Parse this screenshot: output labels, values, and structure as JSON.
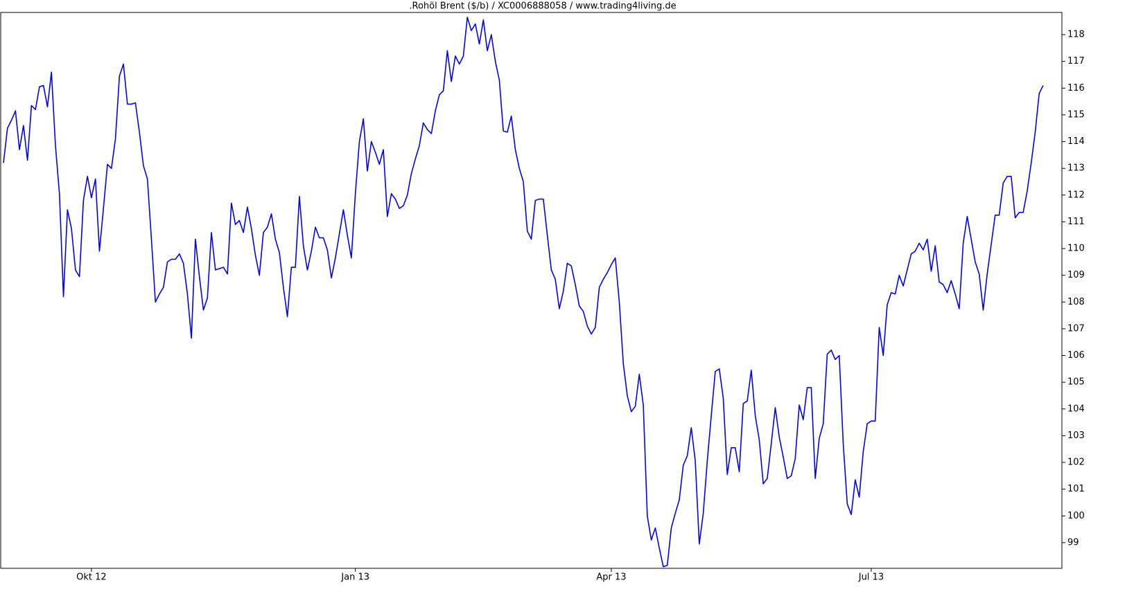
{
  "chart_data": {
    "type": "line",
    "title": ".Rohöl Brent ($/b) / XC0006888058 / www.trading4living.de",
    "categories": [
      null,
      null,
      null,
      null,
      null,
      null,
      null,
      null,
      null,
      null,
      null,
      null,
      null,
      null,
      null,
      null,
      null,
      null,
      null,
      null,
      null,
      null,
      "Okt 12",
      null,
      null,
      null,
      null,
      null,
      null,
      null,
      null,
      null,
      null,
      null,
      null,
      null,
      null,
      null,
      null,
      null,
      null,
      null,
      null,
      null,
      null,
      null,
      null,
      null,
      null,
      null,
      null,
      null,
      null,
      null,
      null,
      null,
      null,
      null,
      null,
      null,
      null,
      null,
      null,
      null,
      null,
      null,
      null,
      null,
      null,
      null,
      null,
      null,
      null,
      null,
      null,
      null,
      null,
      null,
      null,
      null,
      null,
      null,
      null,
      null,
      null,
      null,
      null,
      null,
      "Jan 13",
      null,
      null,
      null,
      null,
      null,
      null,
      null,
      null,
      null,
      null,
      null,
      null,
      null,
      null,
      null,
      null,
      null,
      null,
      null,
      null,
      null,
      null,
      null,
      null,
      null,
      null,
      null,
      null,
      null,
      null,
      null,
      null,
      null,
      null,
      null,
      null,
      null,
      null,
      null,
      null,
      null,
      null,
      null,
      null,
      null,
      null,
      null,
      null,
      null,
      null,
      null,
      null,
      null,
      null,
      null,
      null,
      null,
      null,
      null,
      null,
      null,
      null,
      null,
      "Apr 13",
      null,
      null,
      null,
      null,
      null,
      null,
      null,
      null,
      null,
      null,
      null,
      null,
      null,
      null,
      null,
      null,
      null,
      null,
      null,
      null,
      null,
      null,
      null,
      null,
      null,
      null,
      null,
      null,
      null,
      null,
      null,
      null,
      null,
      null,
      null,
      null,
      null,
      null,
      null,
      null,
      null,
      null,
      null,
      null,
      null,
      null,
      null,
      null,
      null,
      null,
      null,
      null,
      null,
      null,
      null,
      null,
      null,
      null,
      null,
      null,
      null,
      null,
      null,
      null,
      "Jul 13",
      null,
      null,
      null,
      null,
      null,
      null,
      null,
      null,
      null,
      null,
      null,
      null,
      null,
      null,
      null,
      null,
      null,
      null,
      null,
      null,
      null,
      null,
      null,
      null,
      null,
      null,
      null,
      null,
      null,
      null,
      null,
      null,
      null,
      null,
      null,
      null,
      null,
      null,
      null,
      null,
      null,
      null,
      null
    ],
    "series": [
      {
        "color": "#0000ff",
        "values": [
          113.2,
          114.5,
          114.8,
          115.15,
          113.7,
          114.6,
          113.3,
          115.35,
          115.2,
          116.05,
          116.1,
          115.3,
          116.6,
          113.85,
          112.05,
          108.2,
          111.45,
          110.75,
          109.2,
          108.95,
          111.8,
          112.7,
          111.9,
          112.6,
          109.9,
          111.5,
          113.15,
          113.0,
          114.1,
          116.45,
          116.9,
          115.4,
          115.4,
          115.45,
          114.35,
          113.1,
          112.6,
          110.35,
          108.0,
          108.3,
          108.55,
          109.5,
          109.6,
          109.6,
          109.8,
          109.45,
          108.3,
          106.65,
          110.35,
          108.95,
          107.7,
          108.15,
          110.6,
          109.2,
          109.25,
          109.3,
          109.05,
          111.7,
          110.9,
          111.05,
          110.6,
          111.55,
          110.75,
          109.75,
          109.0,
          110.6,
          110.8,
          111.3,
          110.35,
          109.85,
          108.55,
          107.45,
          109.3,
          109.3,
          111.95,
          110.1,
          109.2,
          109.9,
          110.8,
          110.4,
          110.4,
          109.95,
          108.9,
          109.65,
          110.55,
          111.45,
          110.5,
          109.65,
          112.05,
          114.0,
          114.85,
          112.9,
          114.0,
          113.6,
          113.15,
          113.7,
          111.2,
          112.05,
          111.85,
          111.5,
          111.6,
          112.0,
          112.8,
          113.35,
          113.85,
          114.7,
          114.45,
          114.3,
          115.15,
          115.75,
          115.9,
          117.4,
          116.25,
          117.2,
          116.9,
          117.2,
          118.65,
          118.15,
          118.4,
          117.65,
          118.55,
          117.4,
          118.0,
          117.0,
          116.3,
          114.4,
          114.35,
          114.95,
          113.7,
          113.0,
          112.5,
          110.65,
          110.35,
          111.8,
          111.85,
          111.85,
          110.5,
          109.2,
          108.85,
          107.75,
          108.4,
          109.45,
          109.35,
          108.65,
          107.85,
          107.65,
          107.1,
          106.8,
          107.05,
          108.55,
          108.85,
          109.1,
          109.4,
          109.65,
          108.0,
          105.7,
          104.5,
          103.9,
          104.1,
          105.3,
          104.15,
          100.0,
          99.1,
          99.55,
          98.8,
          98.1,
          98.15,
          99.55,
          100.1,
          100.6,
          101.9,
          102.25,
          103.3,
          102.05,
          98.95,
          100.1,
          102.05,
          103.75,
          105.4,
          105.5,
          104.4,
          101.55,
          102.55,
          102.55,
          101.65,
          104.2,
          104.3,
          105.45,
          103.75,
          102.85,
          101.2,
          101.4,
          102.7,
          104.05,
          102.95,
          102.2,
          101.4,
          101.5,
          102.15,
          104.15,
          103.6,
          104.8,
          104.8,
          101.4,
          102.9,
          103.45,
          106.05,
          106.2,
          105.85,
          106.0,
          102.7,
          100.45,
          100.05,
          101.35,
          100.7,
          102.4,
          103.45,
          103.55,
          103.55,
          107.05,
          106.0,
          107.9,
          108.35,
          108.3,
          109.0,
          108.6,
          109.2,
          109.8,
          109.9,
          110.2,
          109.95,
          110.35,
          109.15,
          110.1,
          108.75,
          108.65,
          108.35,
          108.8,
          108.3,
          107.75,
          110.2,
          111.2,
          110.35,
          109.5,
          109.05,
          107.7,
          109.05,
          110.15,
          111.25,
          111.25,
          112.45,
          112.7,
          112.7,
          111.15,
          111.35,
          111.35,
          112.15,
          113.2,
          114.35,
          115.8,
          116.1
        ]
      }
    ],
    "ylim": [
      98.04,
      118.83
    ],
    "yticks": [
      99,
      100,
      101,
      102,
      103,
      104,
      105,
      106,
      107,
      108,
      109,
      110,
      111,
      112,
      113,
      114,
      115,
      116,
      117,
      118
    ],
    "grid": false
  }
}
